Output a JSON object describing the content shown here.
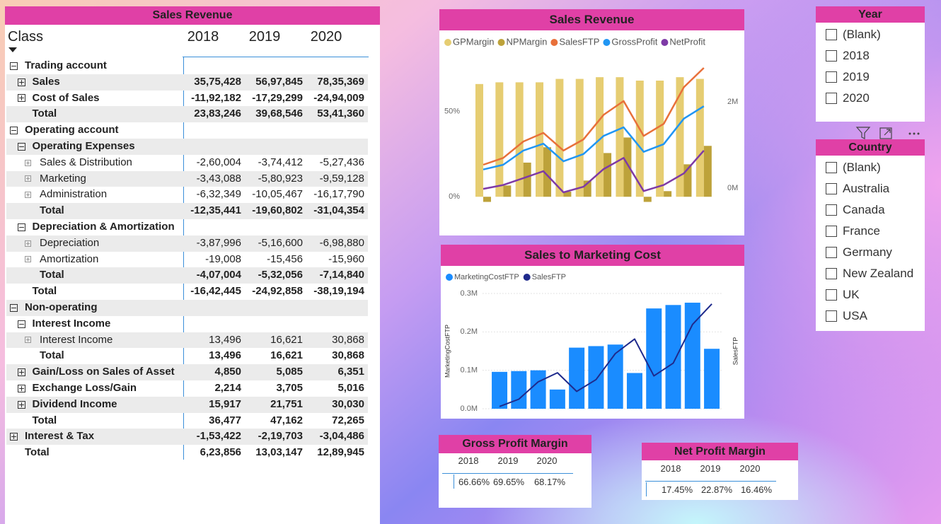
{
  "matrix": {
    "title": "Sales Revenue",
    "header": {
      "label": "Class",
      "columns": [
        "2018",
        "2019",
        "2020"
      ]
    },
    "rows": [
      {
        "label": "Trading account",
        "children": [
          {
            "label": "Sales",
            "values": [
              "35,75,428",
              "56,97,845",
              "78,35,369"
            ]
          },
          {
            "label": "Cost of Sales",
            "values": [
              "-11,92,182",
              "-17,29,299",
              "-24,94,009"
            ]
          }
        ],
        "total": {
          "label": "Total",
          "values": [
            "23,83,246",
            "39,68,546",
            "53,41,360"
          ]
        }
      },
      {
        "label": "Operating account",
        "children": [
          {
            "label": "Operating Expenses",
            "children": [
              {
                "label": "Sales & Distribution",
                "values": [
                  "-2,60,004",
                  "-3,74,412",
                  "-5,27,436"
                ]
              },
              {
                "label": "Marketing",
                "values": [
                  "-3,43,088",
                  "-5,80,923",
                  "-9,59,128"
                ]
              },
              {
                "label": "Administration",
                "values": [
                  "-6,32,349",
                  "-10,05,467",
                  "-16,17,790"
                ]
              }
            ],
            "total": {
              "label": "Total",
              "values": [
                "-12,35,441",
                "-19,60,802",
                "-31,04,354"
              ]
            }
          },
          {
            "label": "Depreciation & Amortization",
            "children": [
              {
                "label": "Depreciation",
                "values": [
                  "-3,87,996",
                  "-5,16,600",
                  "-6,98,880"
                ]
              },
              {
                "label": "Amortization",
                "values": [
                  "-19,008",
                  "-15,456",
                  "-15,960"
                ]
              }
            ],
            "total": {
              "label": "Total",
              "values": [
                "-4,07,004",
                "-5,32,056",
                "-7,14,840"
              ]
            }
          }
        ],
        "total": {
          "label": "Total",
          "values": [
            "-16,42,445",
            "-24,92,858",
            "-38,19,194"
          ]
        }
      },
      {
        "label": "Non-operating",
        "children": [
          {
            "label": "Interest Income",
            "children": [
              {
                "label": "Interest Income",
                "values": [
                  "13,496",
                  "16,621",
                  "30,868"
                ]
              }
            ],
            "total": {
              "label": "Total",
              "values": [
                "13,496",
                "16,621",
                "30,868"
              ]
            }
          },
          {
            "label": "Gain/Loss on Sales of Asset",
            "values": [
              "4,850",
              "5,085",
              "6,351"
            ]
          },
          {
            "label": "Exchange Loss/Gain",
            "values": [
              "2,214",
              "3,705",
              "5,016"
            ]
          },
          {
            "label": "Dividend Income",
            "values": [
              "15,917",
              "21,751",
              "30,030"
            ]
          }
        ],
        "total": {
          "label": "Total",
          "values": [
            "36,477",
            "47,162",
            "72,265"
          ]
        }
      },
      {
        "label": "Interest & Tax",
        "values": [
          "-1,53,422",
          "-2,19,703",
          "-3,04,486"
        ]
      }
    ],
    "total": {
      "label": "Total",
      "values": [
        "6,23,856",
        "13,03,147",
        "12,89,945"
      ]
    }
  },
  "chart_data": [
    {
      "type": "combo",
      "title": "Sales Revenue",
      "categories": [
        null,
        null,
        null,
        null,
        null,
        null,
        null,
        null,
        null,
        null,
        null,
        null
      ],
      "series": [
        {
          "name": "GPMargin",
          "kind": "bar",
          "color": "#e6cd72",
          "values": [
            66,
            67,
            67,
            67,
            69,
            69,
            70,
            70,
            68,
            68,
            70,
            69
          ]
        },
        {
          "name": "NPMargin",
          "kind": "bar",
          "color": "#bda23a",
          "values": [
            -3,
            6.6,
            20,
            29,
            3,
            9.5,
            25.6,
            34.7,
            -3,
            3.3,
            19,
            29.8
          ]
        },
        {
          "name": "SalesFTP",
          "kind": "line",
          "axis": "y2",
          "color": "#e8703a",
          "values": [
            0.54,
            0.7,
            1.08,
            1.28,
            0.87,
            1.13,
            1.7,
            2.02,
            1.21,
            1.49,
            2.34,
            2.79
          ]
        },
        {
          "name": "GrossProfit",
          "kind": "line",
          "axis": "y2",
          "color": "#2196f3",
          "values": [
            0.43,
            0.54,
            0.87,
            1.03,
            0.62,
            0.79,
            1.21,
            1.41,
            0.84,
            1.02,
            1.61,
            1.9
          ]
        },
        {
          "name": "NetProfit",
          "kind": "line",
          "axis": "y2",
          "color": "#7e3aa6",
          "values": [
            -0.02,
            0.07,
            0.23,
            0.39,
            -0.1,
            0.03,
            0.44,
            0.7,
            -0.07,
            0.07,
            0.34,
            0.87
          ]
        }
      ],
      "ylim": [
        -9,
        80
      ],
      "yticks": [
        {
          "value": 0,
          "label": "0%"
        },
        {
          "value": 50,
          "label": "50%"
        }
      ],
      "y2lim": [
        -0.56,
        2.97
      ],
      "y2ticks": [
        {
          "value": 0,
          "label": "0M"
        },
        {
          "value": 2,
          "label": "2M"
        }
      ],
      "grid": false
    },
    {
      "type": "combo",
      "title": "Sales to Marketing Cost",
      "y_label": "MarketingCostFTP",
      "y2_label": "SalesFTP",
      "categories": [
        null,
        null,
        null,
        null,
        null,
        null,
        null,
        null,
        null,
        null,
        null,
        null
      ],
      "series": [
        {
          "name": "MarketingCostFTP",
          "kind": "bar",
          "color": "#1a8cff",
          "values": [
            0.096,
            0.098,
            0.1,
            0.05,
            0.159,
            0.163,
            0.167,
            0.093,
            0.261,
            0.27,
            0.276,
            0.156
          ]
        },
        {
          "name": "SalesFTP",
          "kind": "line",
          "axis": "y2",
          "color": "#1f2a8c",
          "values": [
            0.54,
            0.7,
            1.08,
            1.28,
            0.87,
            1.13,
            1.7,
            2.02,
            1.21,
            1.49,
            2.34,
            2.79
          ]
        }
      ],
      "ylim": [
        0,
        0.3
      ],
      "yticks": [
        {
          "value": 0,
          "label": "0.0M"
        },
        {
          "value": 0.1,
          "label": "0.1M"
        },
        {
          "value": 0.2,
          "label": "0.2M"
        },
        {
          "value": 0.3,
          "label": "0.3M"
        }
      ],
      "y2lim": [
        0.49,
        3.02
      ],
      "grid": true
    }
  ],
  "slicers": [
    {
      "title": "Year",
      "items": [
        "(Blank)",
        "2018",
        "2019",
        "2020"
      ]
    },
    {
      "title": "Country",
      "items": [
        "(Blank)",
        "Australia",
        "Canada",
        "France",
        "Germany",
        "New Zealand",
        "UK",
        "USA"
      ]
    }
  ],
  "cards": [
    {
      "title": "Gross Profit Margin",
      "columns": [
        "2018",
        "2019",
        "2020"
      ],
      "values": [
        "66.66%",
        "69.65%",
        "68.17%"
      ]
    },
    {
      "title": "Net Profit Margin",
      "columns": [
        "2018",
        "2019",
        "2020"
      ],
      "values": [
        "17.45%",
        "22.87%",
        "16.46%"
      ]
    }
  ]
}
